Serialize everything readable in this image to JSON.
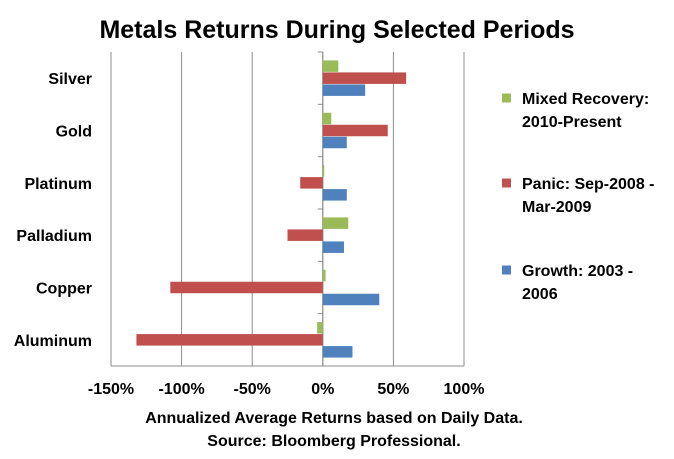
{
  "chart_data": {
    "type": "bar",
    "orientation": "horizontal",
    "title": "Metals Returns During Selected Periods",
    "xlabel_lines": [
      "Annualized Average Returns based on Daily Data.",
      "Source:  Bloomberg Professional."
    ],
    "categories": [
      "Silver",
      "Gold",
      "Platinum",
      "Palladium",
      "Copper",
      "Aluminum"
    ],
    "series": [
      {
        "name": "Mixed Recovery: 2010-Present",
        "legend_lines": [
          "Mixed Recovery:",
          "2010-Present"
        ],
        "color": "#9BBB59",
        "values": [
          11,
          6,
          1,
          18,
          2,
          -4
        ]
      },
      {
        "name": "Panic: Sep-2008 - Mar-2009",
        "legend_lines": [
          "Panic: Sep-2008 -",
          "Mar-2009"
        ],
        "color": "#C0504D",
        "values": [
          59,
          46,
          -16,
          -25,
          -108,
          -132
        ]
      },
      {
        "name": "Growth: 2003 - 2006",
        "legend_lines": [
          "Growth: 2003 -",
          "2006"
        ],
        "color": "#4F81BD",
        "values": [
          30,
          17,
          17,
          15,
          40,
          21
        ]
      }
    ],
    "xlim": [
      -150,
      100
    ],
    "xticks": [
      -150,
      -100,
      -50,
      0,
      50,
      100
    ],
    "xtick_labels": [
      "-150%",
      "-100%",
      "-50%",
      "0%",
      "50%",
      "100%"
    ],
    "grid": "vertical major gridlines",
    "legend": "right"
  }
}
